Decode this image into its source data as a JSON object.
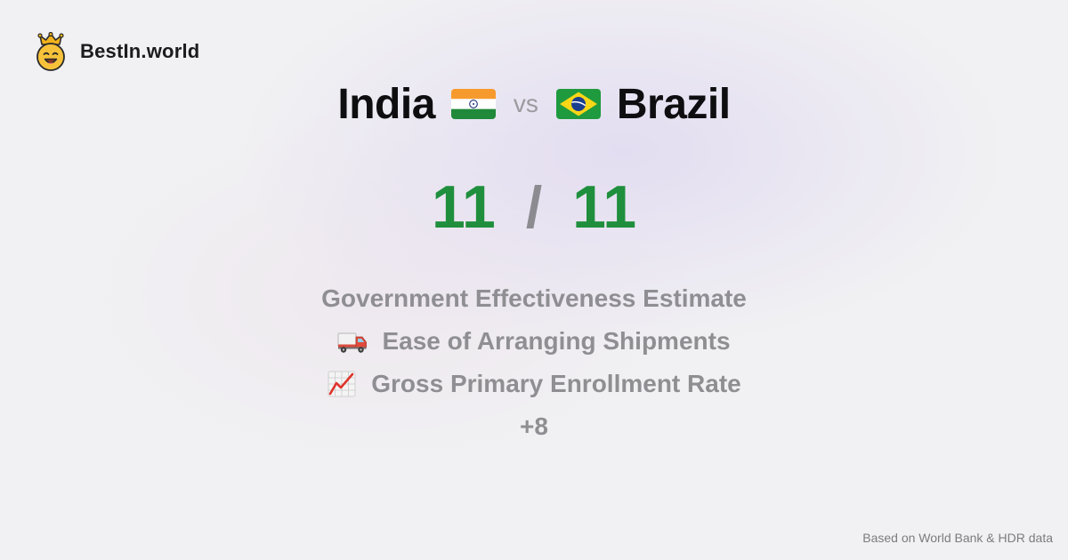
{
  "brand": {
    "name": "BestIn.world",
    "logo_icon": "crowned-smiley-icon"
  },
  "comparison": {
    "left_country": "India",
    "left_flag_icon": "india-flag-icon",
    "vs_label": "vs",
    "right_country": "Brazil",
    "right_flag_icon": "brazil-flag-icon"
  },
  "score": {
    "left": "11",
    "separator": "/",
    "right": "11",
    "color": "#1f8f3d"
  },
  "metrics": [
    {
      "label": "Government Effectiveness Estimate",
      "icon": ""
    },
    {
      "label": "Ease of Arranging Shipments",
      "icon": "delivery-truck-icon"
    },
    {
      "label": "Gross Primary Enrollment Rate",
      "icon": "chart-increasing-icon"
    }
  ],
  "more_label": "+8",
  "footer": {
    "source": "Based on World Bank & HDR data"
  }
}
